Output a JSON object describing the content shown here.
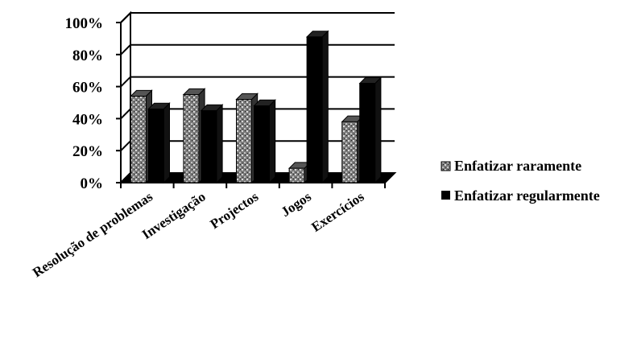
{
  "chart_data": {
    "type": "bar",
    "categories": [
      "Resolução de problemas",
      "Investigação",
      "Projectos",
      "Jogos",
      "Exercícios"
    ],
    "series": [
      {
        "name": "Enfatizar raramente",
        "values": [
          54,
          55,
          52,
          9,
          38
        ],
        "color": "#8a8a8a",
        "pattern": "speckled"
      },
      {
        "name": "Enfatizar regularmente",
        "values": [
          46,
          45,
          48,
          91,
          62
        ],
        "color": "#000000",
        "pattern": "solid"
      }
    ],
    "ylim": [
      0,
      100
    ],
    "yticks": [
      "0%",
      "20%",
      "40%",
      "60%",
      "80%",
      "100%"
    ],
    "grid": true,
    "legend_position": "right",
    "title": "",
    "xlabel": "",
    "ylabel": ""
  }
}
